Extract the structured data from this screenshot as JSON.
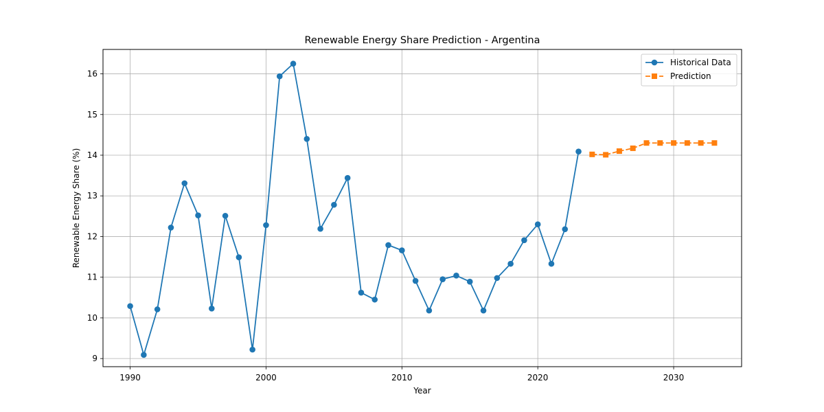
{
  "chart_data": {
    "type": "line",
    "title": "Renewable Energy Share Prediction - Argentina",
    "xlabel": "Year",
    "ylabel": "Renewable Energy Share (%)",
    "xlim": [
      1988,
      2035
    ],
    "ylim": [
      8.8,
      16.6
    ],
    "xticks": [
      1990,
      2000,
      2010,
      2020,
      2030
    ],
    "yticks": [
      9,
      10,
      11,
      12,
      13,
      14,
      15,
      16
    ],
    "grid": true,
    "legend_position": "top-right",
    "series": [
      {
        "name": "Historical Data",
        "color": "#1f77b4",
        "marker": "circle",
        "line_style": "solid",
        "x": [
          1990,
          1991,
          1992,
          1993,
          1994,
          1995,
          1996,
          1997,
          1998,
          1999,
          2000,
          2001,
          2002,
          2003,
          2004,
          2005,
          2006,
          2007,
          2008,
          2009,
          2010,
          2011,
          2012,
          2013,
          2014,
          2015,
          2016,
          2017,
          2018,
          2019,
          2020,
          2021,
          2022,
          2023
        ],
        "y": [
          10.29,
          9.09,
          10.21,
          12.22,
          13.31,
          12.52,
          10.23,
          12.51,
          11.49,
          9.22,
          12.28,
          15.94,
          16.25,
          14.4,
          12.19,
          12.78,
          13.44,
          10.62,
          10.45,
          11.79,
          11.66,
          10.91,
          10.18,
          10.95,
          11.04,
          10.89,
          10.18,
          10.98,
          11.33,
          11.91,
          12.3,
          11.33,
          12.18,
          14.09
        ]
      },
      {
        "name": "Prediction",
        "color": "#ff7f0e",
        "marker": "square",
        "line_style": "dashed",
        "x": [
          2024,
          2025,
          2026,
          2027,
          2028,
          2029,
          2030,
          2031,
          2032,
          2033
        ],
        "y": [
          14.02,
          14.01,
          14.1,
          14.17,
          14.3,
          14.3,
          14.3,
          14.3,
          14.3,
          14.3
        ]
      }
    ]
  }
}
